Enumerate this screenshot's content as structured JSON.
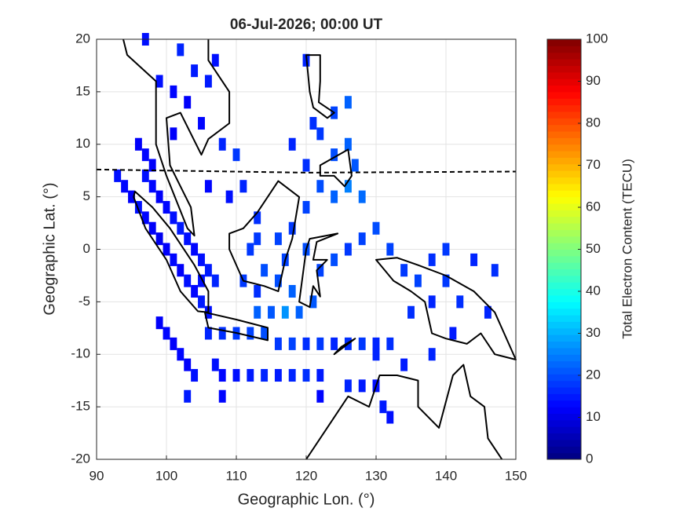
{
  "chart_data": {
    "type": "tec-map",
    "title": "06-Jul-2026; 00:00 UT",
    "x_label": "Geographic Lon. (°)",
    "y_label": "Geographic Lat. (°)",
    "colorbar_label": "Total Electron Content (TECU)",
    "xlim": [
      90,
      150
    ],
    "xticks": [
      90,
      100,
      110,
      120,
      130,
      140,
      150
    ],
    "ylim": [
      -20,
      20
    ],
    "yticks": [
      -20,
      -15,
      -10,
      -5,
      0,
      5,
      10,
      15,
      20
    ],
    "clim": [
      0,
      100
    ],
    "cticks": [
      0,
      10,
      20,
      30,
      40,
      50,
      60,
      70,
      80,
      90,
      100
    ],
    "colormap": "jet",
    "grid": true,
    "x": [
      93,
      94,
      95,
      96,
      97,
      98,
      99,
      100,
      101,
      102,
      103,
      104,
      105,
      106,
      96,
      97,
      98,
      97,
      98,
      99,
      100,
      101,
      102,
      103,
      104,
      105,
      106,
      107,
      99,
      100,
      101,
      102,
      103,
      104,
      103,
      107,
      108,
      106,
      108,
      110,
      112,
      114,
      116,
      118,
      120,
      122,
      124,
      126,
      128,
      130,
      132,
      110,
      112,
      114,
      116,
      118,
      120,
      122,
      126,
      128,
      130,
      122,
      131,
      132,
      108,
      97,
      102,
      104,
      99,
      101,
      103,
      106,
      107,
      105,
      101,
      108,
      110,
      109,
      106,
      111,
      113,
      112,
      114,
      116,
      118,
      117,
      119,
      121,
      113,
      111,
      113,
      115,
      122,
      124,
      126,
      128,
      130,
      132,
      134,
      136,
      138,
      140,
      144,
      147,
      140,
      142,
      146,
      138,
      135,
      141,
      138,
      134,
      130,
      118,
      120,
      122,
      124,
      126,
      128,
      120,
      118,
      122,
      124,
      126,
      120,
      121,
      124,
      127,
      126,
      105,
      113,
      116,
      120,
      117
    ],
    "y": [
      7,
      6,
      5,
      4,
      3,
      2,
      1,
      0,
      -1,
      -2,
      -3,
      -4,
      -5,
      -6,
      10,
      9,
      8,
      7,
      6,
      5,
      4,
      3,
      2,
      1,
      0,
      -1,
      -2,
      -3,
      -7,
      -8,
      -9,
      -10,
      -11,
      -12,
      -14,
      -11,
      -12,
      -8,
      -8,
      -8,
      -8,
      -8,
      -9,
      -9,
      -9,
      -9,
      -9,
      -9,
      -9,
      -9,
      -9,
      -12,
      -12,
      -12,
      -12,
      -12,
      -12,
      -12,
      -13,
      -13,
      -13,
      -14,
      -15,
      -16,
      -14,
      20,
      19,
      17,
      16,
      15,
      14,
      16,
      18,
      12,
      11,
      10,
      9,
      5,
      6,
      6,
      3,
      0,
      -2,
      -3,
      -4,
      -6,
      -6,
      -5,
      -4,
      -3,
      -6,
      -6,
      -2,
      -1,
      0,
      1,
      2,
      0,
      -2,
      -3,
      -1,
      0,
      -1,
      -2,
      -3,
      -5,
      -6,
      -5,
      -6,
      -8,
      -10,
      -11,
      -10,
      2,
      4,
      6,
      5,
      6,
      5,
      8,
      10,
      11,
      13,
      14,
      18,
      12,
      9,
      8,
      10,
      -3,
      1,
      1,
      0,
      -1
    ],
    "values": [
      14,
      13,
      12,
      14,
      13,
      12,
      11,
      12,
      13,
      12,
      14,
      13,
      15,
      14,
      12,
      13,
      12,
      14,
      13,
      12,
      13,
      14,
      15,
      14,
      13,
      14,
      15,
      16,
      12,
      13,
      12,
      13,
      12,
      14,
      15,
      14,
      13,
      16,
      17,
      18,
      19,
      20,
      18,
      19,
      17,
      18,
      16,
      17,
      18,
      16,
      17,
      14,
      15,
      16,
      15,
      16,
      17,
      15,
      16,
      15,
      14,
      13,
      15,
      14,
      13,
      14,
      16,
      15,
      14,
      13,
      12,
      15,
      14,
      13,
      12,
      16,
      18,
      14,
      13,
      16,
      17,
      18,
      20,
      20,
      22,
      27,
      22,
      21,
      17,
      18,
      22,
      21,
      19,
      20,
      18,
      19,
      20,
      19,
      18,
      19,
      17,
      18,
      16,
      17,
      18,
      17,
      16,
      16,
      17,
      15,
      16,
      15,
      16,
      18,
      19,
      20,
      22,
      25,
      23,
      17,
      16,
      18,
      19,
      22,
      16,
      17,
      20,
      21,
      22,
      14,
      18,
      19,
      20,
      19
    ]
  }
}
